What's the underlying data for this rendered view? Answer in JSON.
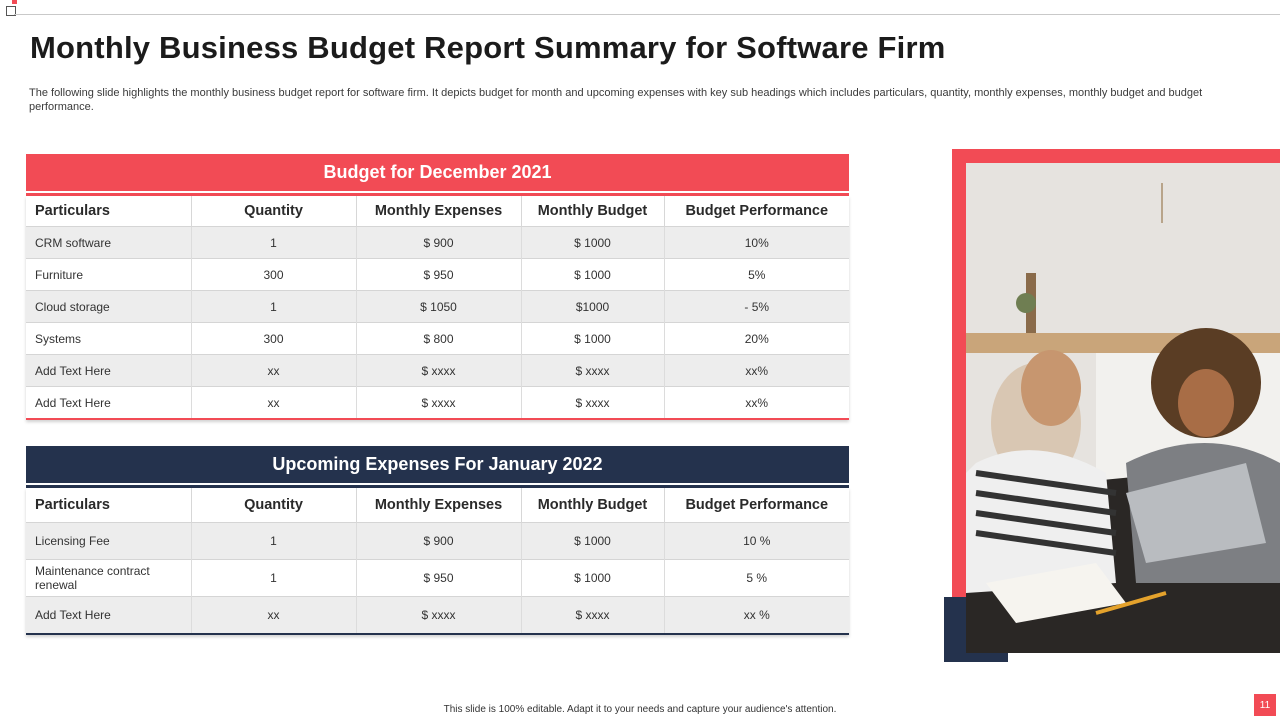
{
  "title": "Monthly Business Budget Report Summary for Software Firm",
  "description": "The following slide highlights the monthly business budget report for software firm. It depicts budget for month and upcoming expenses with key sub headings which includes particulars, quantity, monthly expenses, monthly budget and budget performance.",
  "colors": {
    "accent": "#f24b55",
    "navy": "#24324d",
    "row_alt": "#ededed"
  },
  "table1": {
    "heading": "Budget for December 2021",
    "columns": [
      "Particulars",
      "Quantity",
      "Monthly Expenses",
      "Monthly Budget",
      "Budget Performance"
    ],
    "rows": [
      [
        "CRM  software",
        "1",
        "$ 900",
        "$ 1000",
        "10%"
      ],
      [
        "Furniture",
        "300",
        "$ 950",
        "$ 1000",
        "5%"
      ],
      [
        "Cloud storage",
        "1",
        "$ 1050",
        "$1000",
        "- 5%"
      ],
      [
        "Systems",
        "300",
        "$ 800",
        "$ 1000",
        "20%"
      ],
      [
        "Add Text Here",
        "xx",
        "$ xxxx",
        "$ xxxx",
        "xx%"
      ],
      [
        "Add Text Here",
        "xx",
        "$ xxxx",
        "$ xxxx",
        "xx%"
      ]
    ]
  },
  "table2": {
    "heading": "Upcoming Expenses For January 2022",
    "columns": [
      "Particulars",
      "Quantity",
      "Monthly Expenses",
      "Monthly Budget",
      "Budget Performance"
    ],
    "rows": [
      [
        "Licensing Fee",
        "1",
        "$ 900",
        "$ 1000",
        "10 %"
      ],
      [
        "Maintenance contract renewal",
        "1",
        "$ 950",
        "$ 1000",
        "5 %"
      ],
      [
        "Add Text Here",
        "xx",
        "$ xxxx",
        "$ xxxx",
        "xx  %"
      ]
    ]
  },
  "footer_note": "This slide is 100% editable.  Adapt it to your needs and capture your audience's attention.",
  "page_number": "11"
}
